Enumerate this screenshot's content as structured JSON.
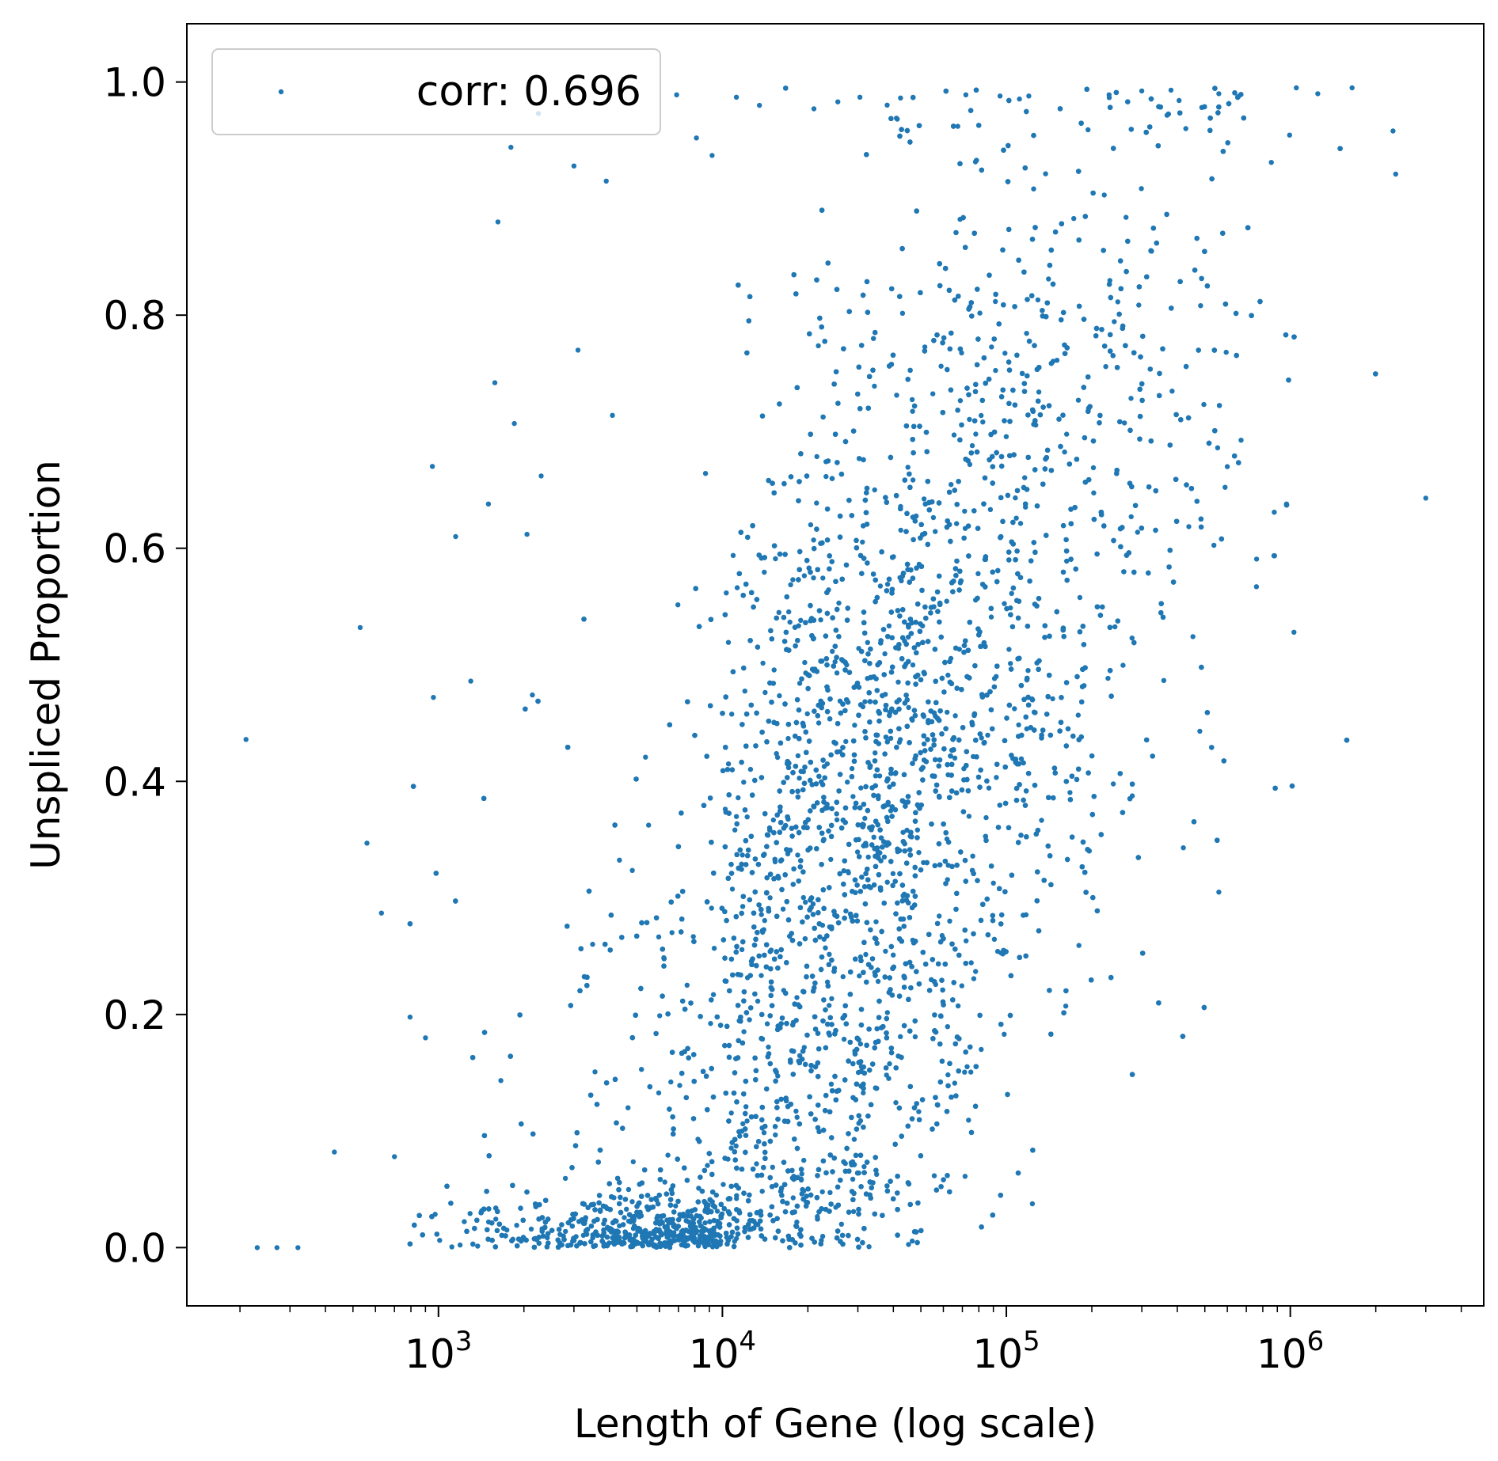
{
  "chart_data": {
    "type": "scatter",
    "xlabel": "Length of Gene (log scale)",
    "ylabel": "Unspliced Proportion",
    "x_scale": "log",
    "xlim": [
      130,
      4800000
    ],
    "ylim": [
      -0.05,
      1.05
    ],
    "x_ticks": [
      1000,
      10000,
      100000,
      1000000
    ],
    "x_tick_labels": [
      {
        "base": "10",
        "exp": "3"
      },
      {
        "base": "10",
        "exp": "4"
      },
      {
        "base": "10",
        "exp": "5"
      },
      {
        "base": "10",
        "exp": "6"
      }
    ],
    "y_ticks": [
      0.0,
      0.2,
      0.4,
      0.6,
      0.8,
      1.0
    ],
    "y_tick_labels": [
      "0.0",
      "0.2",
      "0.4",
      "0.6",
      "0.8",
      "1.0"
    ],
    "grid": false,
    "legend": {
      "position": "top-left",
      "entries": [
        {
          "label": "corr: 0.696"
        }
      ]
    },
    "series": [
      {
        "name": "corr: 0.696",
        "color": "#1f77b4",
        "correlation": 0.696,
        "points": [
          [
            210,
            0.436
          ],
          [
            230,
            0.0
          ],
          [
            270,
            0.0
          ],
          [
            320,
            0.0
          ],
          [
            430,
            0.082
          ],
          [
            530,
            0.532
          ],
          [
            560,
            0.347
          ],
          [
            630,
            0.287
          ],
          [
            700,
            0.078
          ],
          [
            900,
            0.18
          ],
          [
            960,
            0.472
          ],
          [
            1150,
            0.61
          ],
          [
            1300,
            0.486
          ],
          [
            1500,
            0.638
          ],
          [
            1580,
            0.742
          ],
          [
            1620,
            0.88
          ],
          [
            1800,
            0.944
          ],
          [
            1850,
            0.707
          ],
          [
            2050,
            0.612
          ],
          [
            2300,
            0.662
          ],
          [
            2250,
            0.973
          ],
          [
            3000,
            0.928
          ],
          [
            3100,
            0.77
          ],
          [
            3900,
            0.915
          ],
          [
            4100,
            0.714
          ],
          [
            6900,
            0.989
          ],
          [
            8100,
            0.952
          ],
          [
            9200,
            0.937
          ],
          [
            11200,
            0.987
          ],
          [
            13500,
            0.98
          ],
          [
            21000,
            0.977
          ],
          [
            25500,
            0.983
          ],
          [
            30500,
            0.987
          ],
          [
            41000,
            0.969
          ],
          [
            72000,
            0.989
          ],
          [
            95000,
            0.988
          ],
          [
            120000,
            0.988
          ],
          [
            230000,
            0.989
          ],
          [
            380000,
            0.993
          ],
          [
            560000,
            0.99
          ],
          [
            1050000,
            0.995
          ],
          [
            1250000,
            0.99
          ],
          [
            1650000,
            0.995
          ],
          [
            2300000,
            0.958
          ],
          [
            2350000,
            0.921
          ],
          [
            3000000,
            0.643
          ],
          [
            1030000,
            0.528
          ],
          [
            760000,
            0.567
          ],
          [
            560000,
            0.305
          ],
          [
            420000,
            0.343
          ],
          [
            600000,
            0.67
          ],
          [
            480000,
            0.443
          ],
          [
            970000,
            0.638
          ]
        ],
        "generated_cloud": {
          "count": 9500,
          "log10_x_mean": 4.45,
          "log10_x_sd": 0.55,
          "y_min": 0.0,
          "y_max": 1.0
        }
      }
    ]
  }
}
